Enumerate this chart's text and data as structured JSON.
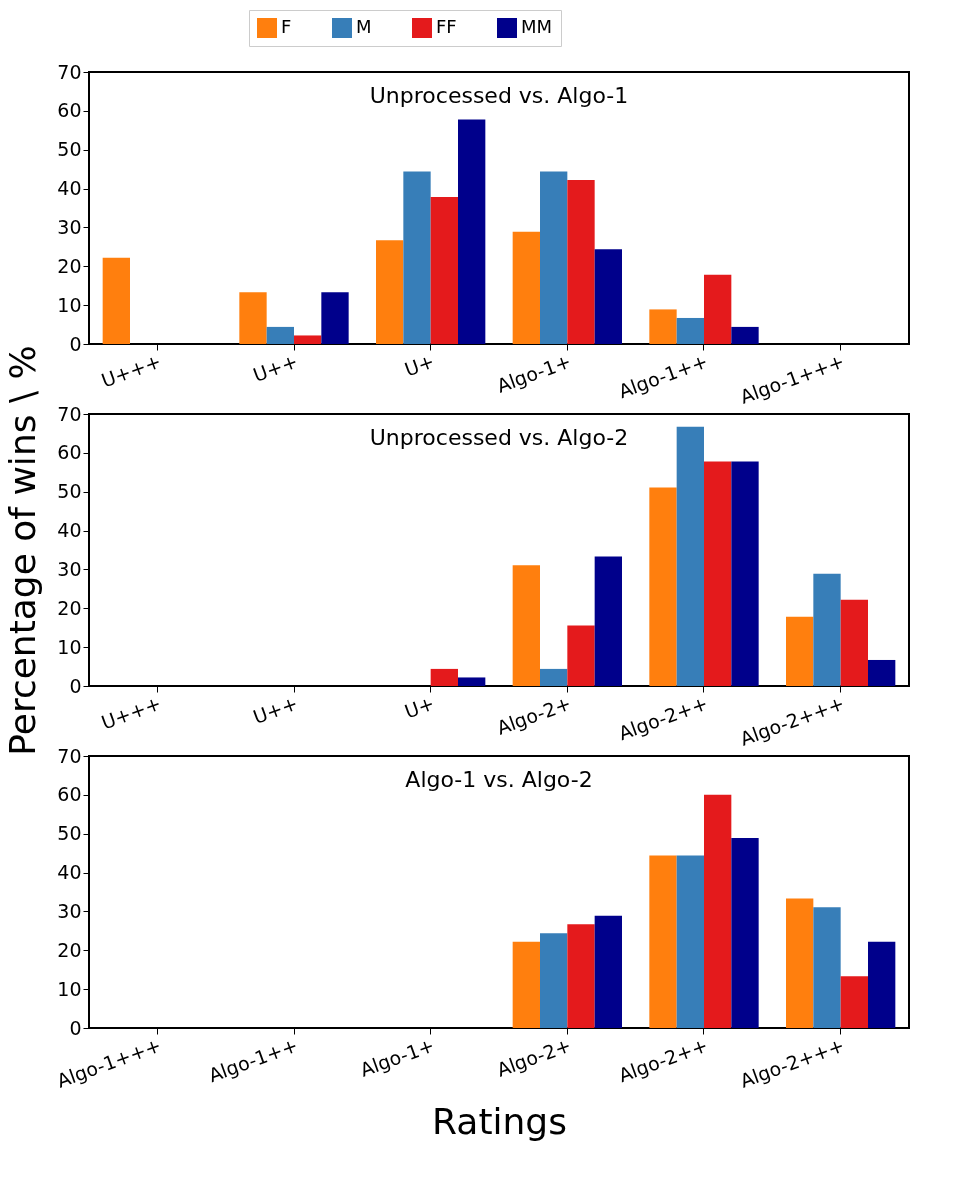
{
  "chart_data": [
    {
      "type": "bar",
      "title": "Unprocessed vs. Algo-1",
      "categories": [
        "U+++",
        "U++",
        "U+",
        "Algo-1+",
        "Algo-1++",
        "Algo-1+++"
      ],
      "ylim": [
        0,
        70
      ],
      "yticks": [
        0,
        10,
        20,
        30,
        40,
        50,
        60,
        70
      ],
      "grid": false,
      "legend": "top",
      "series": [
        {
          "name": "F",
          "color": "#ff7f0e",
          "values": [
            22.2,
            13.3,
            26.7,
            28.9,
            8.9,
            0
          ]
        },
        {
          "name": "M",
          "color": "#377eb8",
          "values": [
            0,
            4.4,
            44.4,
            44.4,
            6.7,
            0
          ]
        },
        {
          "name": "FF",
          "color": "#e41a1c",
          "values": [
            0,
            2.2,
            37.8,
            42.2,
            17.8,
            0
          ]
        },
        {
          "name": "MM",
          "color": "#00008b",
          "values": [
            0,
            13.3,
            57.8,
            24.4,
            4.4,
            0
          ]
        }
      ]
    },
    {
      "type": "bar",
      "title": "Unprocessed vs. Algo-2",
      "ylabel": "Percentage of wins \\ %",
      "categories": [
        "U+++",
        "U++",
        "U+",
        "Algo-2+",
        "Algo-2++",
        "Algo-2+++"
      ],
      "ylim": [
        0,
        70
      ],
      "yticks": [
        0,
        10,
        20,
        30,
        40,
        50,
        60,
        70
      ],
      "grid": false,
      "series": [
        {
          "name": "F",
          "color": "#ff7f0e",
          "values": [
            0,
            0,
            0,
            31.1,
            51.1,
            17.8
          ]
        },
        {
          "name": "M",
          "color": "#377eb8",
          "values": [
            0,
            0,
            0,
            4.4,
            66.7,
            28.9
          ]
        },
        {
          "name": "FF",
          "color": "#e41a1c",
          "values": [
            0,
            0,
            4.4,
            15.6,
            57.8,
            22.2
          ]
        },
        {
          "name": "MM",
          "color": "#00008b",
          "values": [
            0,
            0,
            2.2,
            33.3,
            57.8,
            6.7
          ]
        }
      ]
    },
    {
      "type": "bar",
      "title": "Algo-1 vs. Algo-2",
      "xlabel": "Ratings",
      "categories": [
        "Algo-1+++",
        "Algo-1++",
        "Algo-1+",
        "Algo-2+",
        "Algo-2++",
        "Algo-2+++"
      ],
      "ylim": [
        0,
        70
      ],
      "yticks": [
        0,
        10,
        20,
        30,
        40,
        50,
        60,
        70
      ],
      "grid": false,
      "series": [
        {
          "name": "F",
          "color": "#ff7f0e",
          "values": [
            0,
            0,
            0,
            22.2,
            44.4,
            33.3
          ]
        },
        {
          "name": "M",
          "color": "#377eb8",
          "values": [
            0,
            0,
            0,
            24.4,
            44.4,
            31.1
          ]
        },
        {
          "name": "FF",
          "color": "#e41a1c",
          "values": [
            0,
            0,
            0,
            26.7,
            60,
            13.3
          ]
        },
        {
          "name": "MM",
          "color": "#00008b",
          "values": [
            0,
            0,
            0,
            28.9,
            48.9,
            22.2
          ]
        }
      ]
    }
  ]
}
